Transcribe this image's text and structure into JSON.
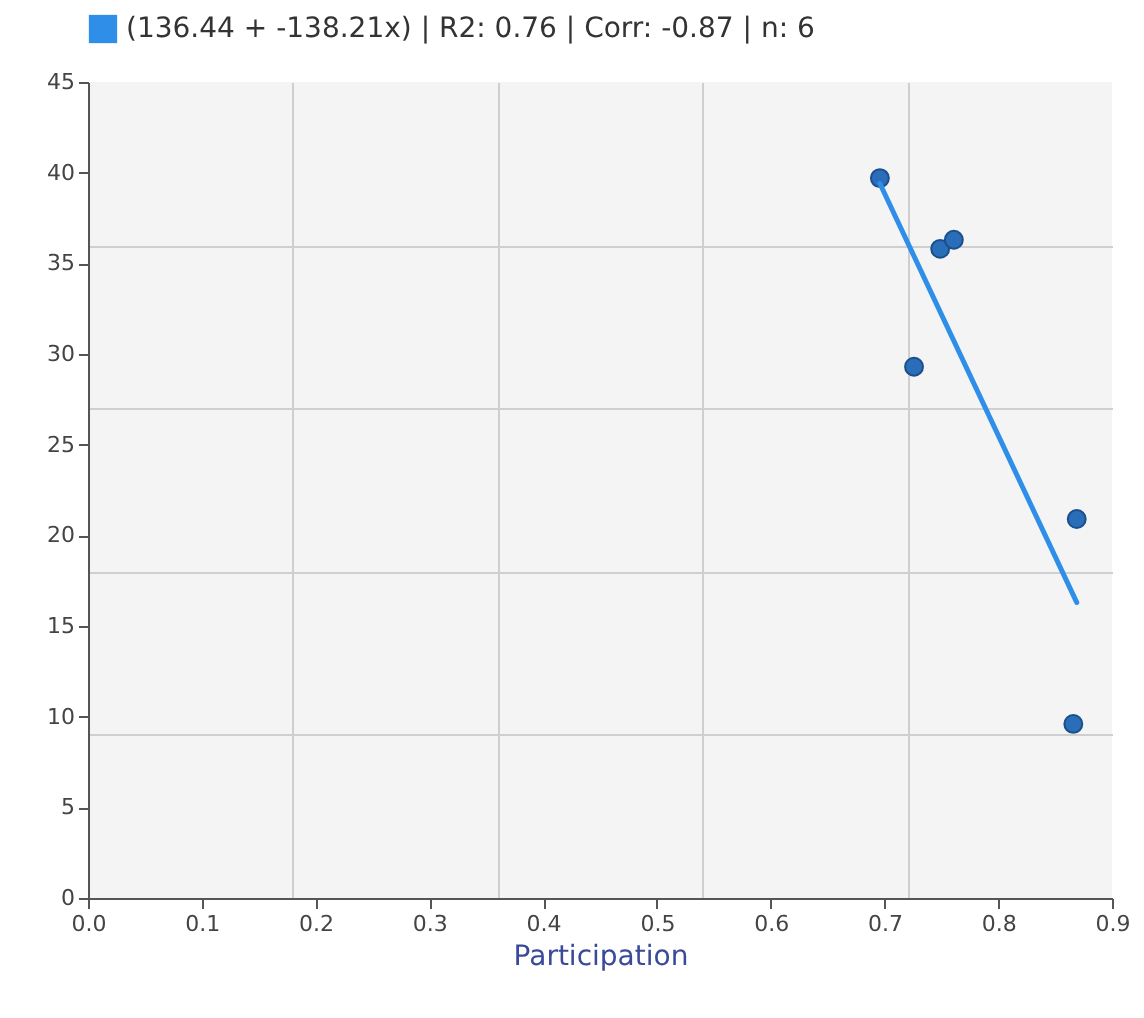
{
  "chart_data": {
    "type": "scatter",
    "xlabel": "Participation",
    "xlim": [
      0,
      0.9
    ],
    "xticks": [
      {
        "value": 0,
        "label": "0.0"
      },
      0.1,
      {
        "value": 0.18,
        "label": null
      },
      0.2,
      0.3,
      {
        "value": 0.36,
        "label": null
      },
      0.4,
      0.5,
      {
        "value": 0.54,
        "label": null
      },
      0.6,
      0.7,
      {
        "value": 0.72,
        "label": null
      },
      0.8,
      0.9
    ],
    "ylim": [
      0,
      45
    ],
    "yticks": [
      0,
      5,
      {
        "value": 9,
        "label": null
      },
      10,
      15,
      {
        "value": 18,
        "label": null
      },
      20,
      25,
      {
        "value": 27,
        "label": null
      },
      30,
      35,
      {
        "value": 36,
        "label": null
      },
      40,
      45
    ],
    "grid": true,
    "legend": "top left",
    "series": [
      {
        "marker": "circle",
        "color": "#2a6db8",
        "x": [
          0.696,
          0.726,
          0.749,
          0.761,
          0.869,
          0.866
        ],
        "values": [
          39.7,
          29.3,
          35.8,
          36.3,
          20.9,
          9.6
        ]
      },
      {
        "type": "line",
        "name": "(136.44 + -138.21x) | R2: 0.76 | Corr: -0.87 | n: 6",
        "color": "#2f8ee8",
        "line_style": "solid",
        "x": [
          0.696,
          0.869
        ],
        "values": [
          39.4,
          16.3
        ]
      }
    ]
  }
}
